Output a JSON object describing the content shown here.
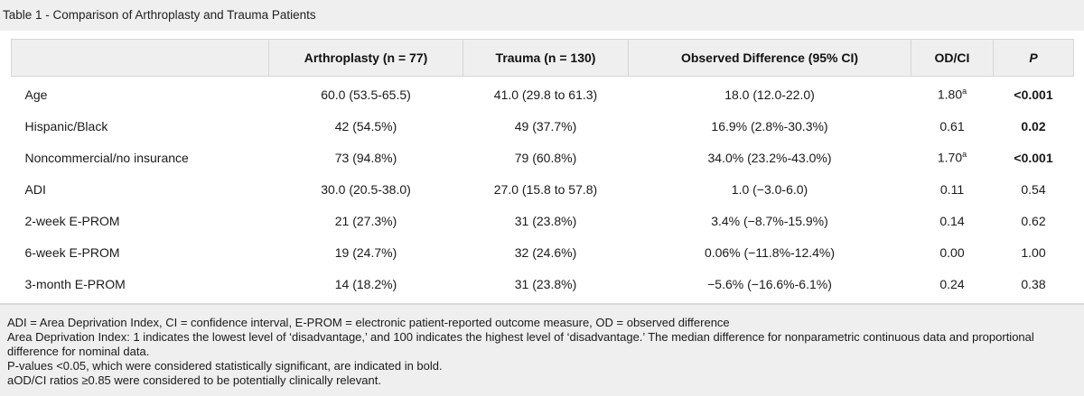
{
  "title": "Table 1 - Comparison of Arthroplasty and Trauma Patients",
  "table": {
    "headers": {
      "blank": "",
      "arthroplasty": "Arthroplasty (n = 77)",
      "trauma": "Trauma (n = 130)",
      "diff": "Observed Difference (95% CI)",
      "odci": "OD/CI",
      "p": "P"
    },
    "rows": [
      {
        "label": "Age",
        "arthro": "60.0 (53.5-65.5)",
        "trauma": "41.0 (29.8 to 61.3)",
        "diff": "18.0 (12.0-22.0)",
        "odci": "1.80",
        "odci_sup": "a",
        "p": "<0.001"
      },
      {
        "label": "Hispanic/Black",
        "arthro": "42 (54.5%)",
        "trauma": "49 (37.7%)",
        "diff": "16.9% (2.8%-30.3%)",
        "odci": "0.61",
        "odci_sup": "",
        "p": "0.02"
      },
      {
        "label": "Noncommercial/no insurance",
        "arthro": "73 (94.8%)",
        "trauma": "79 (60.8%)",
        "diff": "34.0% (23.2%-43.0%)",
        "odci": "1.70",
        "odci_sup": "a",
        "p": "<0.001"
      },
      {
        "label": "ADI",
        "arthro": "30.0 (20.5-38.0)",
        "trauma": "27.0 (15.8 to 57.8)",
        "diff": "1.0 (−3.0-6.0)",
        "odci": "0.11",
        "odci_sup": "",
        "p": "0.54"
      },
      {
        "label": "2-week E-PROM",
        "arthro": "21 (27.3%)",
        "trauma": "31 (23.8%)",
        "diff": "3.4% (−8.7%-15.9%)",
        "odci": "0.14",
        "odci_sup": "",
        "p": "0.62"
      },
      {
        "label": "6-week E-PROM",
        "arthro": "19 (24.7%)",
        "trauma": "32 (24.6%)",
        "diff": "0.06% (−11.8%-12.4%)",
        "odci": "0.00",
        "odci_sup": "",
        "p": "1.00"
      },
      {
        "label": "3-month E-PROM",
        "arthro": "14 (18.2%)",
        "trauma": "31 (23.8%)",
        "diff": "−5.6% (−16.6%-6.1%)",
        "odci": "0.24",
        "odci_sup": "",
        "p": "0.38"
      }
    ]
  },
  "footnotes": {
    "line1": "ADI = Area Deprivation Index, CI = confidence interval, E-PROM = electronic patient-reported outcome measure, OD = observed difference",
    "line2": "Area Deprivation Index: 1 indicates the lowest level of ‘disadvantage,’ and 100 indicates the highest level of ‘disadvantage.’ The median difference for nonparametric continuous data and proportional difference for nominal data.",
    "line3": "P-values <0.05, which were considered statistically significant, are indicated in bold.",
    "line4": "aOD/CI ratios ≥0.85 were considered to be potentially clinically relevant."
  }
}
